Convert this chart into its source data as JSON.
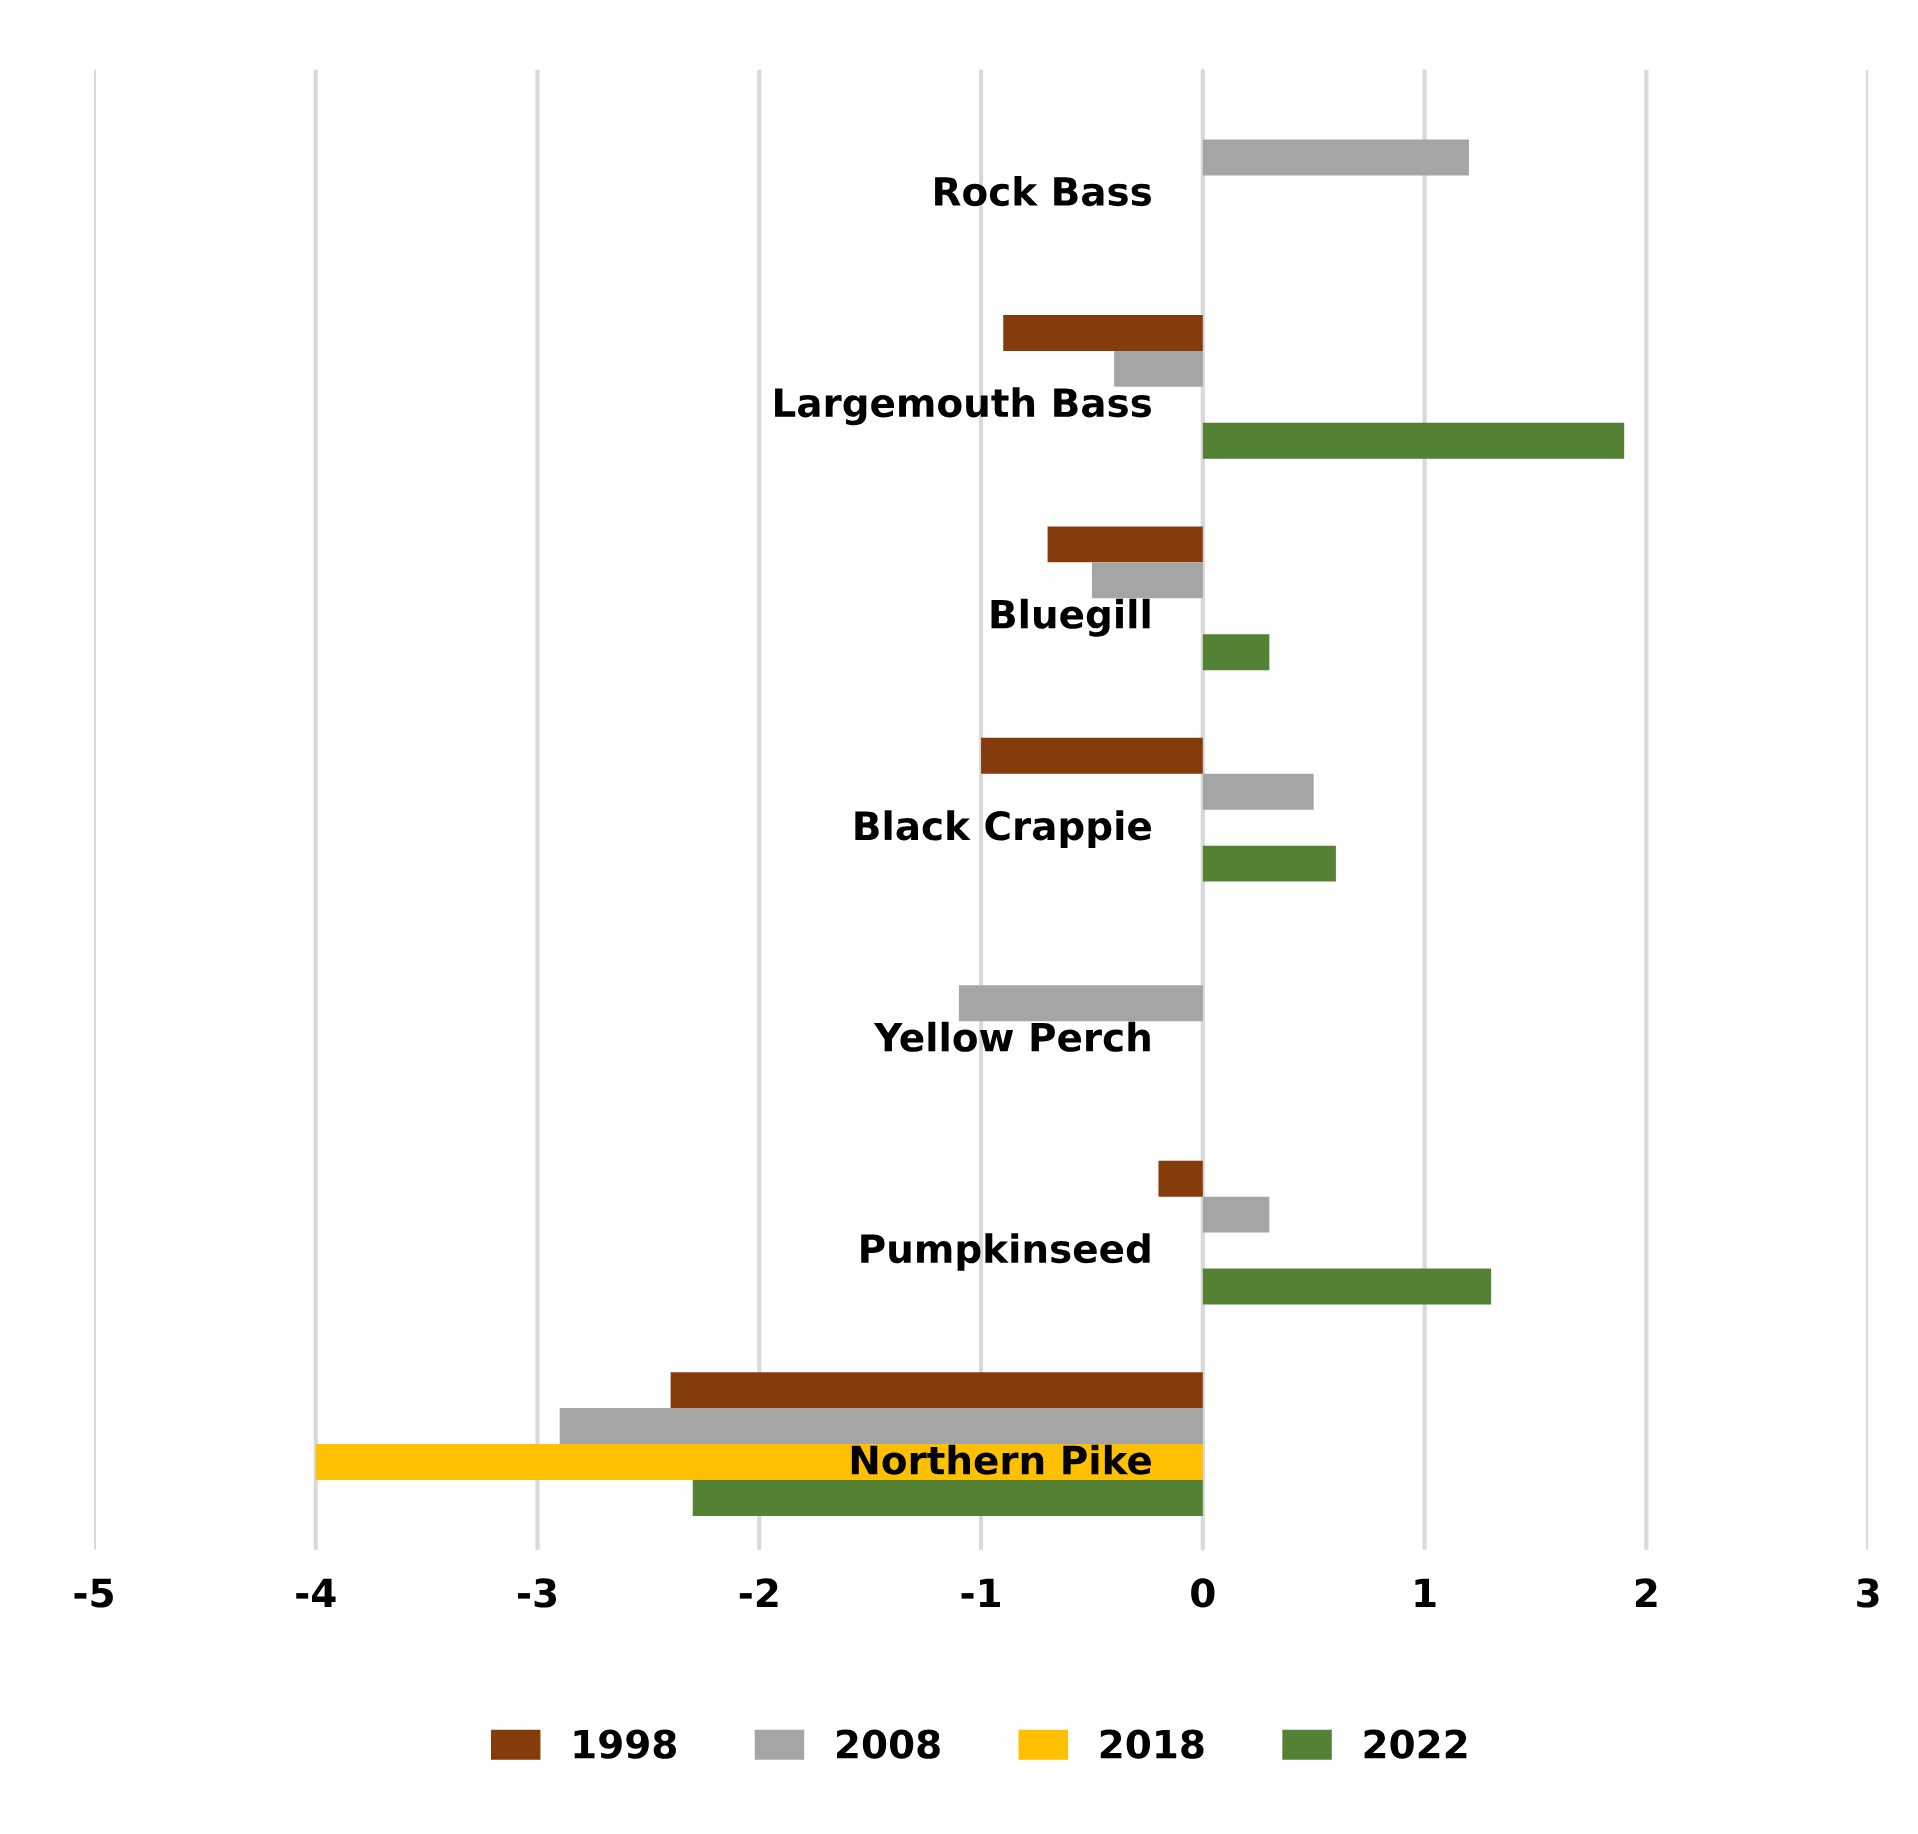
{
  "chart_data": {
    "type": "bar",
    "orientation": "horizontal",
    "categories": [
      "Rock Bass",
      "Largemouth Bass",
      "Bluegill",
      "Black Crappie",
      "Yellow Perch",
      "Pumpkinseed",
      "Northern Pike"
    ],
    "series": [
      {
        "name": "1998",
        "color": "#843c0c",
        "values": [
          null,
          -0.9,
          -0.7,
          -1.0,
          null,
          -0.2,
          -2.4
        ]
      },
      {
        "name": "2008",
        "color": "#a5a5a5",
        "values": [
          1.2,
          -0.4,
          -0.5,
          0.5,
          -1.1,
          0.3,
          -2.9
        ]
      },
      {
        "name": "2018",
        "color": "#ffc000",
        "values": [
          null,
          null,
          null,
          null,
          null,
          null,
          -4.0
        ]
      },
      {
        "name": "2022",
        "color": "#548235",
        "values": [
          null,
          1.9,
          0.3,
          0.6,
          null,
          1.3,
          -2.3
        ]
      }
    ],
    "xlim": [
      -5,
      3
    ],
    "xticks": [
      -5,
      -4,
      -3,
      -2,
      -1,
      0,
      1,
      2,
      3
    ],
    "grid": "x",
    "legend": "bottom"
  }
}
